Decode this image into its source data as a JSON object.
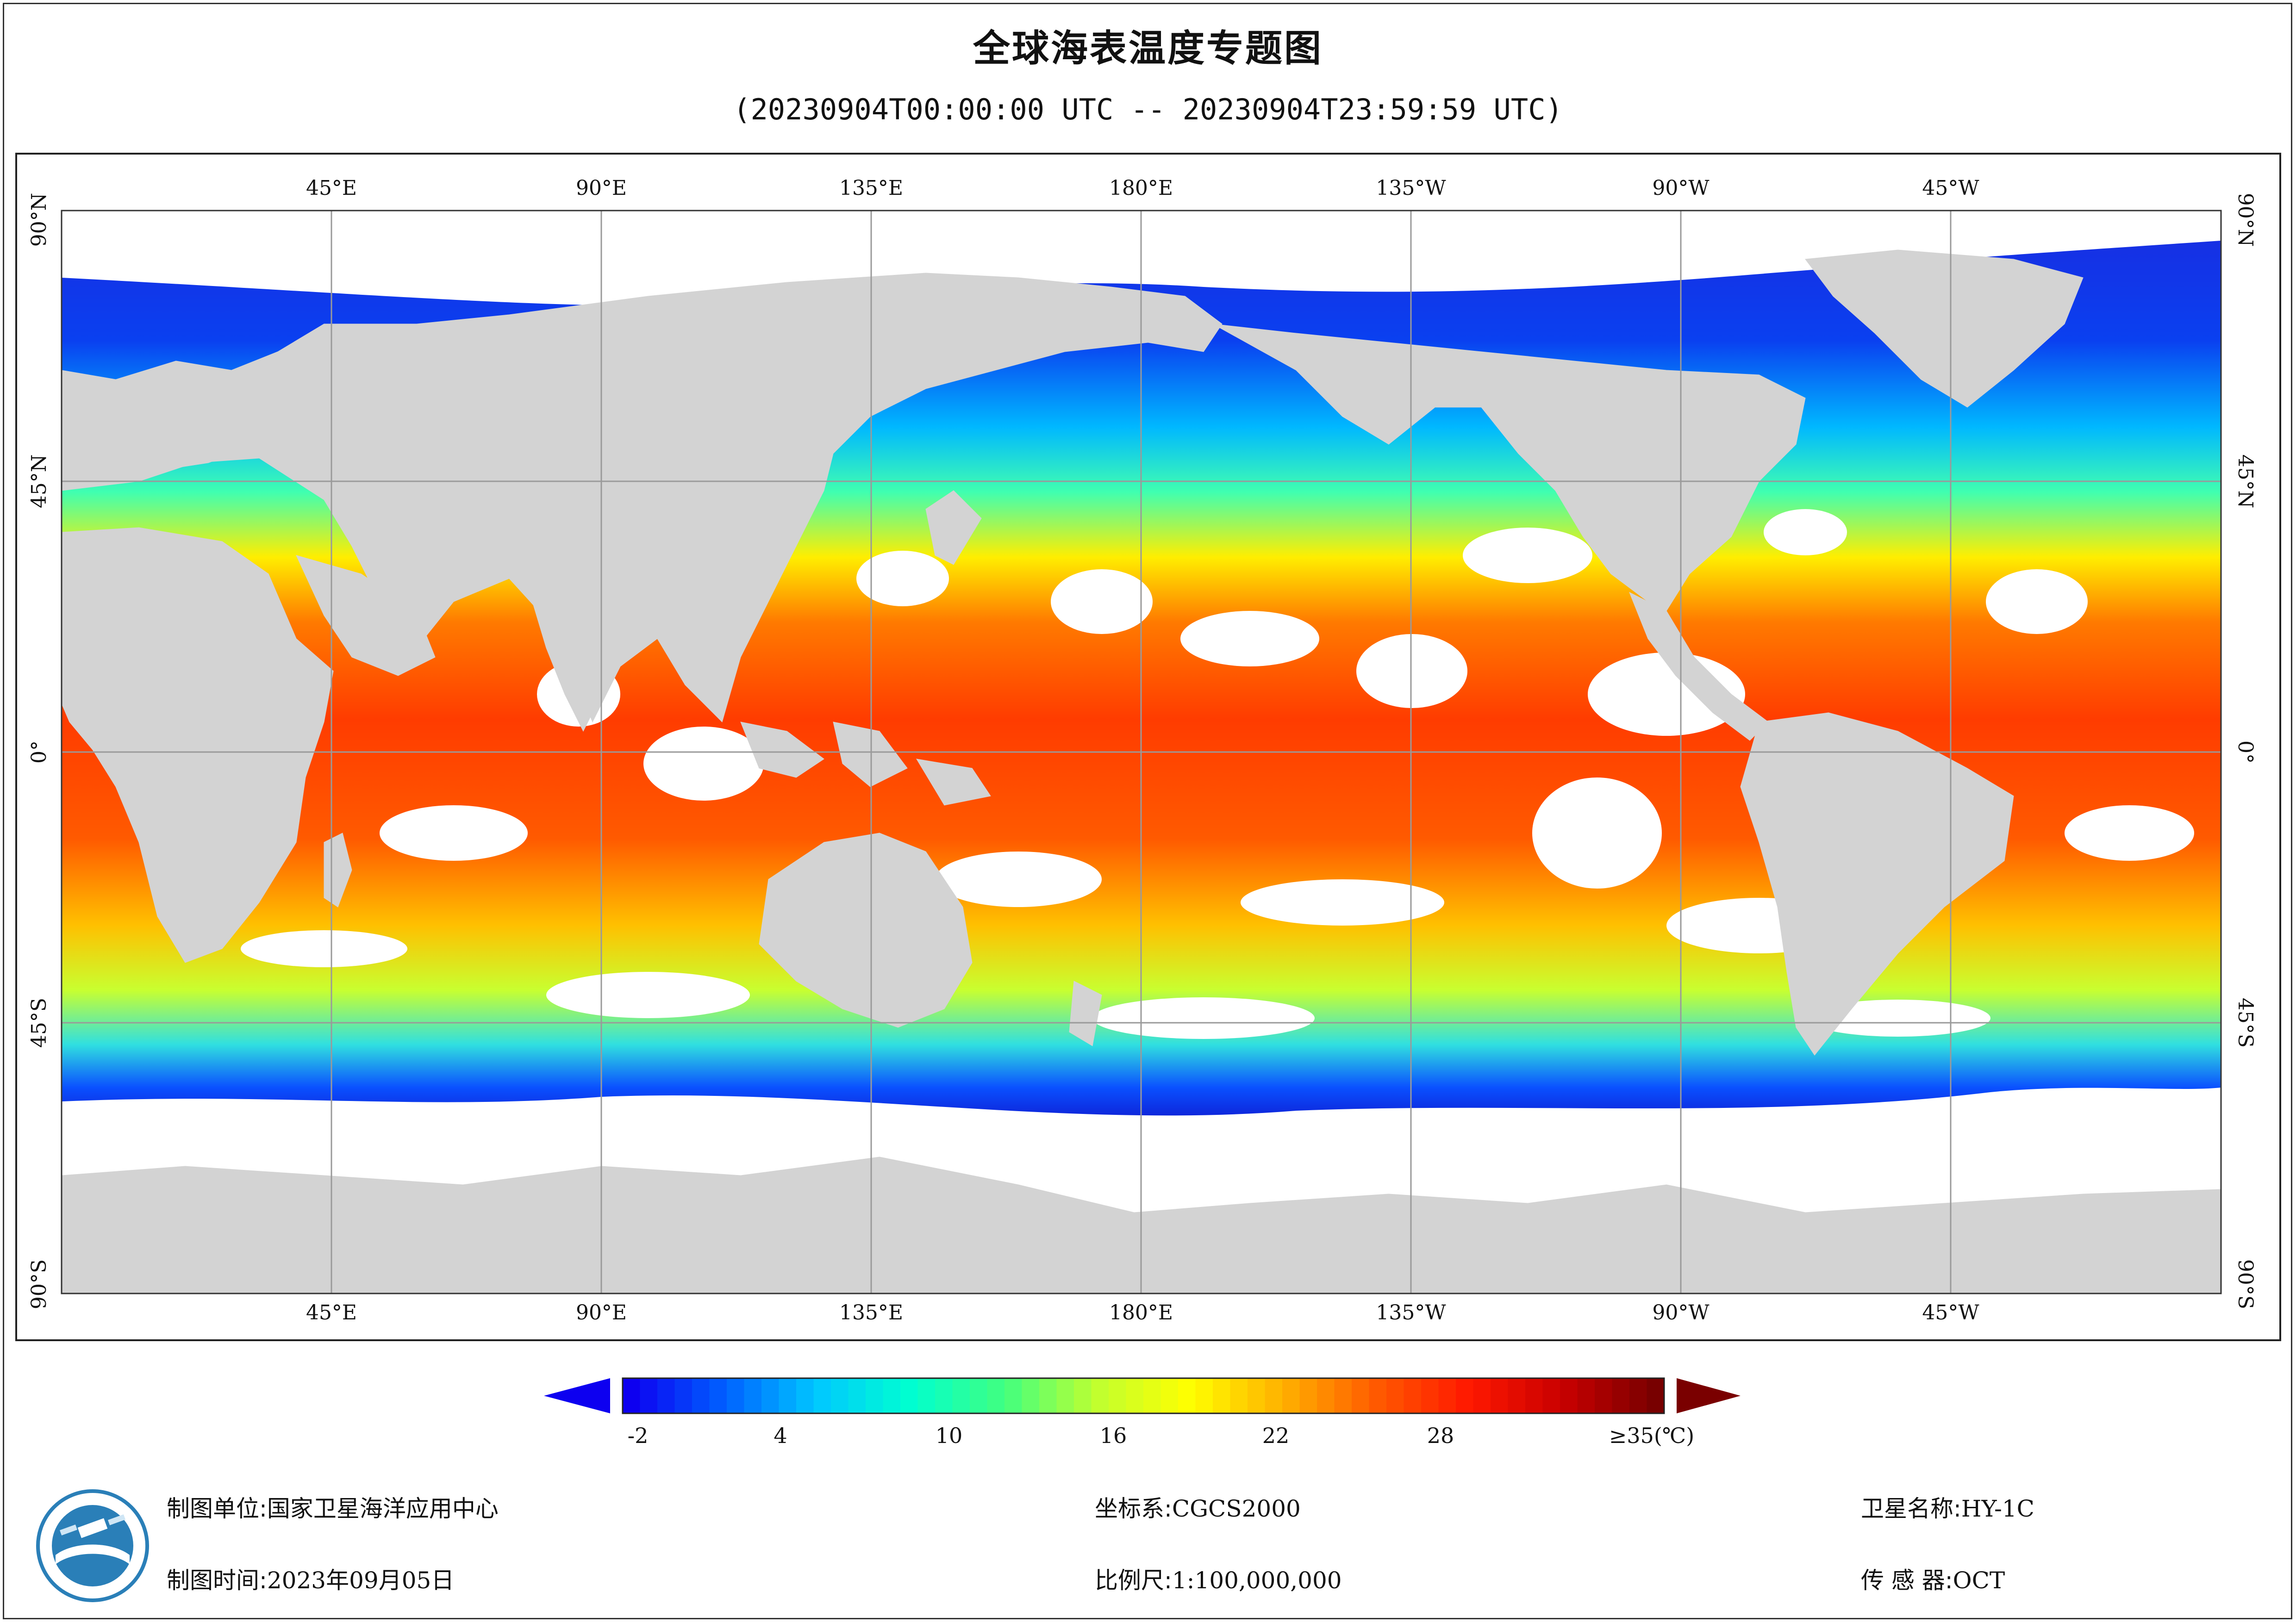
{
  "title": "全球海表温度专题图",
  "subtitle": "(20230904T00:00:00 UTC -- 20230904T23:59:59 UTC)",
  "map": {
    "lon_labels": [
      "45°E",
      "90°E",
      "135°E",
      "180°E",
      "135°W",
      "90°W",
      "45°W"
    ],
    "lat_labels": [
      "90°N",
      "45°N",
      "0°",
      "45°S",
      "90°S"
    ],
    "colors": {
      "land": "#d3d3d3",
      "cloud": "#ffffff",
      "grid": "#9a9a9a"
    }
  },
  "colorbar": {
    "tick_labels": [
      "-2",
      "4",
      "10",
      "16",
      "22",
      "28",
      "≥35(℃)"
    ],
    "min": -2,
    "max": 35,
    "colors": [
      "#0d00f0",
      "#0060ff",
      "#00c8ff",
      "#00ffd0",
      "#40ff80",
      "#c0ff30",
      "#ffff00",
      "#ffb000",
      "#ff5a00",
      "#ff1800",
      "#c80000",
      "#780000"
    ]
  },
  "info": {
    "unit_key": "制图单位:",
    "unit_val": "国家卫星海洋应用中心",
    "time_key": "制图时间:",
    "time_val": "2023年09月05日",
    "crs_key": "坐标系:",
    "crs_val": "CGCS2000",
    "scale_key": "比例尺:",
    "scale_val": "1:100,000,000",
    "sat_key": "卫星名称:",
    "sat_val": "HY-1C",
    "sensor_key": "传 感 器:",
    "sensor_val": "OCT"
  }
}
